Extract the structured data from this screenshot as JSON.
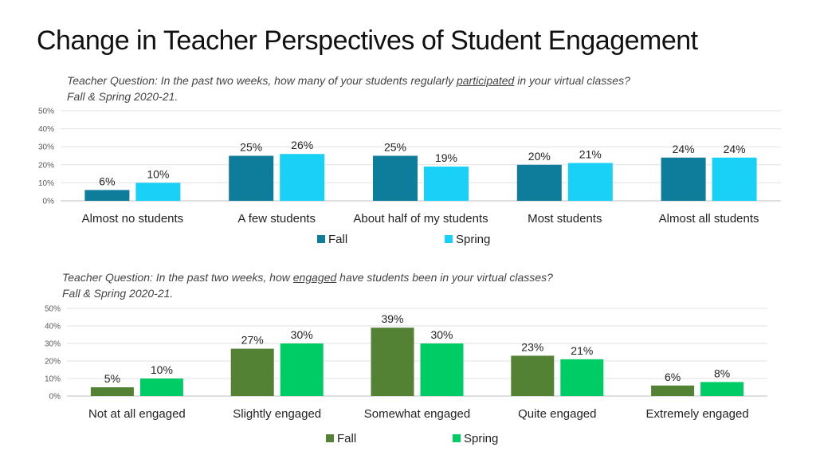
{
  "slide": {
    "title": "Change in Teacher Perspectives of Student Engagement"
  },
  "chart_data": [
    {
      "type": "bar",
      "question": {
        "before": "Teacher Question: In the past two weeks, how many of your students regularly ",
        "keyword": "participated",
        "after": " in your virtual classes?",
        "line2": "Fall & Spring 2020-21."
      },
      "categories": [
        "Almost no students",
        "A few students",
        "About half of my students",
        "Most students",
        "Almost all students"
      ],
      "series": [
        {
          "name": "Fall",
          "values": [
            6,
            25,
            25,
            20,
            24
          ],
          "labels": [
            "6%",
            "25%",
            "25%",
            "20%",
            "24%"
          ],
          "color": "#0e7c9b"
        },
        {
          "name": "Spring",
          "values": [
            10,
            26,
            19,
            21,
            24
          ],
          "labels": [
            "10%",
            "26%",
            "19%",
            "21%",
            "24%"
          ],
          "color": "#19d0f7"
        }
      ],
      "ylim": [
        0,
        50
      ],
      "yticks": [
        0,
        10,
        20,
        30,
        40,
        50
      ],
      "ytick_labels": [
        "0%",
        "10%",
        "20%",
        "30%",
        "40%",
        "50%"
      ],
      "grid": true,
      "legend_position": "bottom"
    },
    {
      "type": "bar",
      "question": {
        "before": "Teacher Question: In the past two weeks, how ",
        "keyword": "engaged",
        "after": " have students been in your virtual classes?",
        "line2": "Fall & Spring 2020-21."
      },
      "categories": [
        "Not at all engaged",
        "Slightly engaged",
        "Somewhat engaged",
        "Quite engaged",
        "Extremely engaged"
      ],
      "series": [
        {
          "name": "Fall",
          "values": [
            5,
            27,
            39,
            23,
            6
          ],
          "labels": [
            "5%",
            "27%",
            "39%",
            "23%",
            "6%"
          ],
          "color": "#548235"
        },
        {
          "name": "Spring",
          "values": [
            10,
            30,
            30,
            21,
            8
          ],
          "labels": [
            "10%",
            "30%",
            "30%",
            "21%",
            "8%"
          ],
          "color": "#00cc66"
        }
      ],
      "ylim": [
        0,
        50
      ],
      "yticks": [
        0,
        10,
        20,
        30,
        40,
        50
      ],
      "ytick_labels": [
        "0%",
        "10%",
        "20%",
        "30%",
        "40%",
        "50%"
      ],
      "grid": true,
      "legend_position": "bottom"
    }
  ]
}
